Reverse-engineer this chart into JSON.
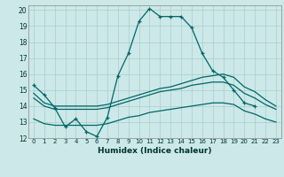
{
  "xlabel": "Humidex (Indice chaleur)",
  "background_color": "#cce8e8",
  "grid_color": "#aacccc",
  "line_color": "#006666",
  "xlim": [
    -0.5,
    23.5
  ],
  "ylim": [
    12,
    20.3
  ],
  "xticks": [
    0,
    1,
    2,
    3,
    4,
    5,
    6,
    7,
    8,
    9,
    10,
    11,
    12,
    13,
    14,
    15,
    16,
    17,
    18,
    19,
    20,
    21,
    22,
    23
  ],
  "yticks": [
    12,
    13,
    14,
    15,
    16,
    17,
    18,
    19,
    20
  ],
  "series": [
    {
      "x": [
        0,
        1,
        2,
        3,
        4,
        5,
        6,
        7,
        8,
        9,
        10,
        11,
        12,
        13,
        14,
        15,
        16,
        17,
        18,
        19,
        20,
        21
      ],
      "y": [
        15.3,
        14.7,
        13.9,
        12.7,
        13.2,
        12.4,
        12.1,
        13.3,
        15.9,
        17.3,
        19.3,
        20.1,
        19.6,
        19.6,
        19.6,
        18.9,
        17.3,
        16.2,
        15.8,
        15.0,
        14.2,
        14.0
      ],
      "marker": true
    },
    {
      "x": [
        0,
        1,
        2,
        3,
        4,
        5,
        6,
        7,
        8,
        9,
        10,
        11,
        12,
        13,
        14,
        15,
        16,
        17,
        18,
        19,
        20,
        21,
        22,
        23
      ],
      "y": [
        14.8,
        14.2,
        14.0,
        14.0,
        14.0,
        14.0,
        14.0,
        14.1,
        14.3,
        14.5,
        14.7,
        14.9,
        15.1,
        15.2,
        15.4,
        15.6,
        15.8,
        15.9,
        16.0,
        15.8,
        15.2,
        14.9,
        14.4,
        14.0
      ],
      "marker": false
    },
    {
      "x": [
        0,
        1,
        2,
        3,
        4,
        5,
        6,
        7,
        8,
        9,
        10,
        11,
        12,
        13,
        14,
        15,
        16,
        17,
        18,
        19,
        20,
        21,
        22,
        23
      ],
      "y": [
        14.5,
        14.0,
        13.8,
        13.8,
        13.8,
        13.8,
        13.8,
        13.9,
        14.1,
        14.3,
        14.5,
        14.7,
        14.9,
        15.0,
        15.1,
        15.3,
        15.4,
        15.5,
        15.5,
        15.3,
        14.8,
        14.5,
        14.1,
        13.8
      ],
      "marker": false
    },
    {
      "x": [
        0,
        1,
        2,
        3,
        4,
        5,
        6,
        7,
        8,
        9,
        10,
        11,
        12,
        13,
        14,
        15,
        16,
        17,
        18,
        19,
        20,
        21,
        22,
        23
      ],
      "y": [
        13.2,
        12.9,
        12.8,
        12.8,
        12.8,
        12.8,
        12.8,
        12.9,
        13.1,
        13.3,
        13.4,
        13.6,
        13.7,
        13.8,
        13.9,
        14.0,
        14.1,
        14.2,
        14.2,
        14.1,
        13.7,
        13.5,
        13.2,
        13.0
      ],
      "marker": false
    }
  ]
}
